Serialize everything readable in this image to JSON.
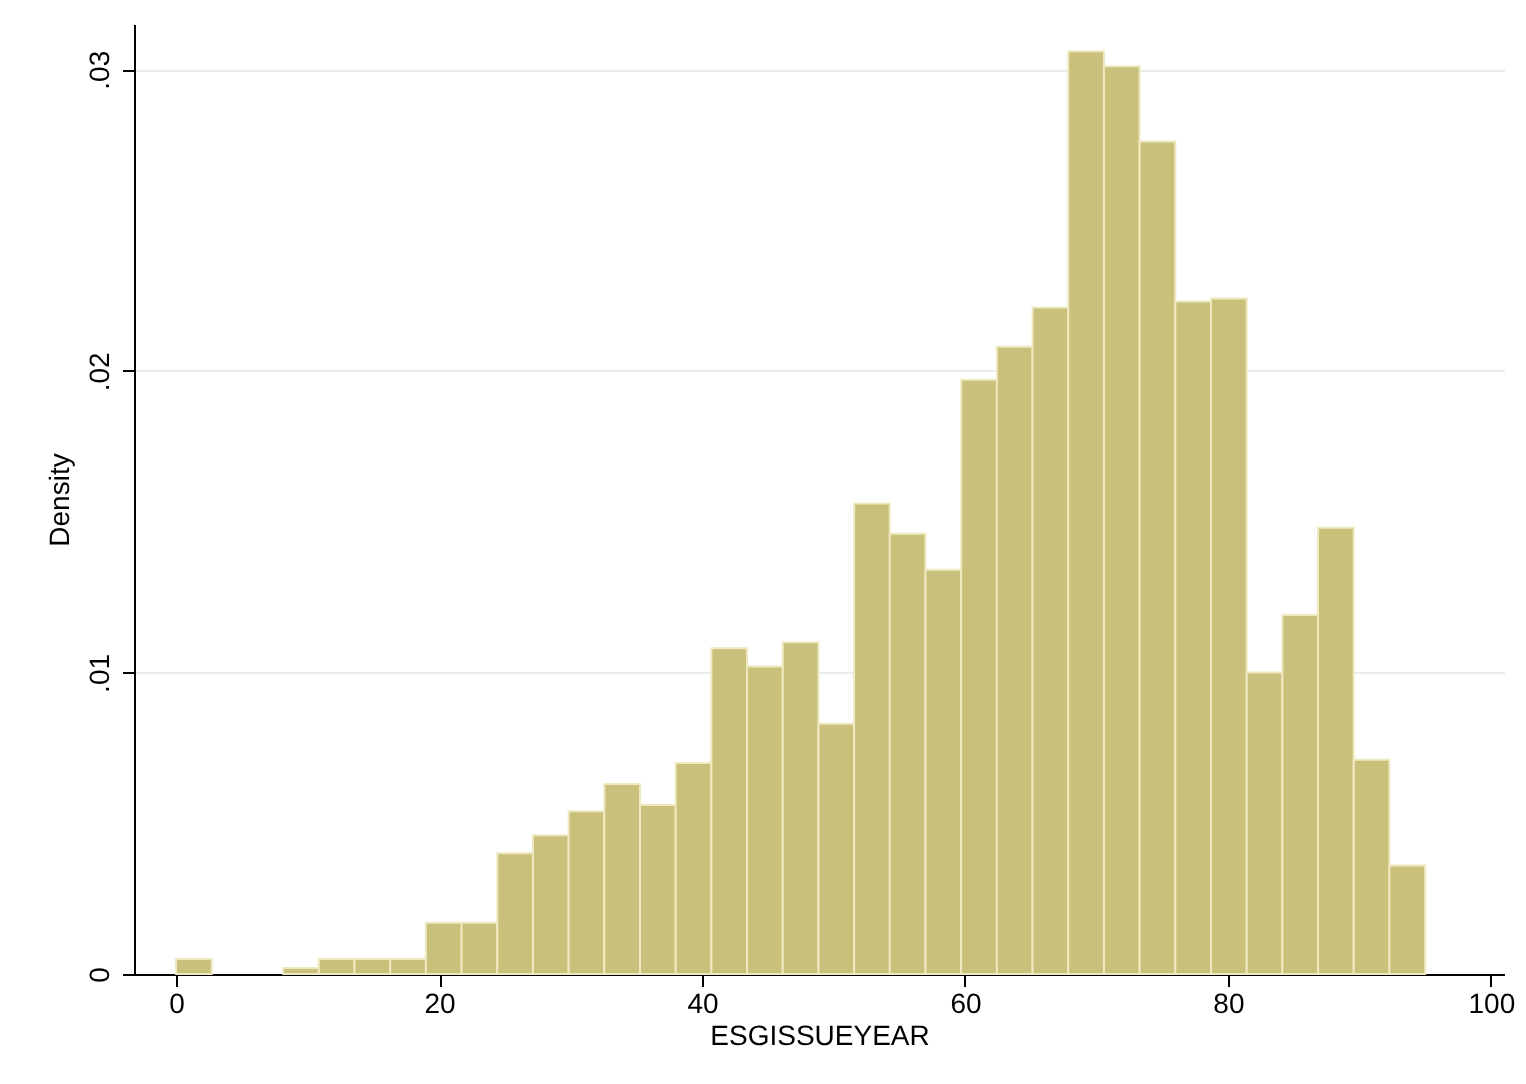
{
  "chart_data": {
    "type": "histogram",
    "xlabel": "ESGISSUEYEAR",
    "ylabel": "Density",
    "color": "#c9c07c",
    "bins": [
      0,
      2.714,
      5.429,
      8.143,
      10.857,
      13.571,
      16.286,
      19,
      21.714,
      24.429,
      27.143,
      29.857,
      32.571,
      35.286,
      38,
      40.714,
      43.429,
      46.143,
      48.857,
      51.571,
      54.286,
      57,
      59.714,
      62.429,
      65.143,
      67.857,
      70.571,
      73.286,
      76,
      78.714,
      81.429,
      84.143,
      86.857,
      89.571,
      92.286,
      95
    ],
    "values": [
      0.0005,
      0,
      0,
      0.0002,
      0.0005,
      0.0005,
      0.0005,
      0.0017,
      0.0017,
      0.004,
      0.0046,
      0.0054,
      0.0063,
      0.0056,
      0.007,
      0.0108,
      0.0102,
      0.011,
      0.0083,
      0.0156,
      0.0146,
      0.0134,
      0.0197,
      0.0208,
      0.0221,
      0.0306,
      0.0301,
      0.0276,
      0.0223,
      0.0224,
      0.01,
      0.0119,
      0.0148,
      0.0071,
      0.0036
    ],
    "xlim": [
      -3.2,
      101
    ],
    "xticks": [
      0,
      20,
      40,
      60,
      80,
      100
    ],
    "ylim": [
      0,
      0.0315
    ],
    "yticks": [
      {
        "value": 0,
        "label": "0"
      },
      {
        "value": 0.01,
        "label": ".01"
      },
      {
        "value": 0.02,
        "label": ".02"
      },
      {
        "value": 0.03,
        "label": ".03"
      }
    ],
    "grid": "y"
  }
}
